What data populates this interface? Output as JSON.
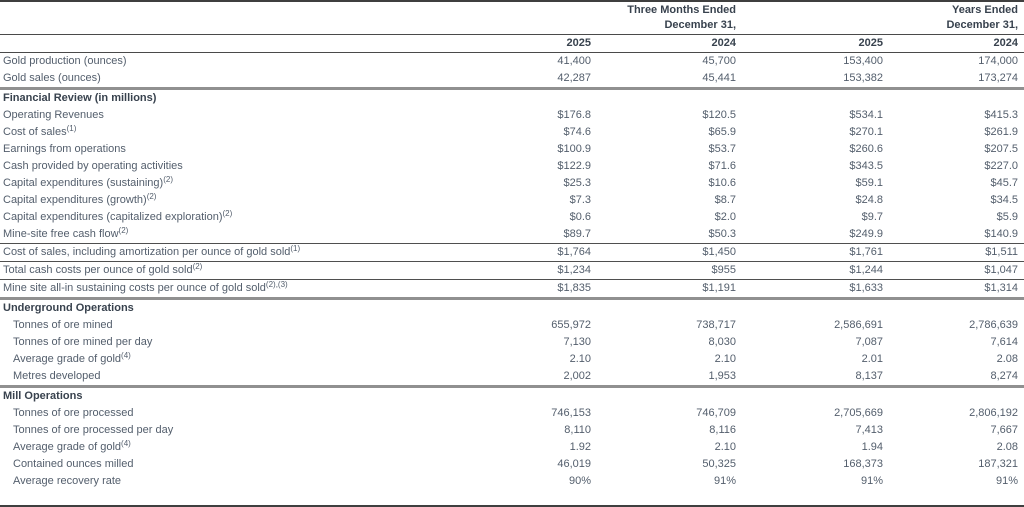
{
  "colors": {
    "text_regular": "#535e6c",
    "text_bold": "#38424e",
    "rule_dark": "#3f3f3f",
    "rule_thin": "#4f4f4f",
    "rule_thick_gray": "#909090"
  },
  "table": {
    "header": {
      "period1_line1": "Three Months Ended",
      "period1_line2": "December 31,",
      "period2_line1": "Years Ended",
      "period2_line2": "December 31,",
      "year_columns": [
        "2025",
        "2024",
        "2025",
        "2024"
      ]
    },
    "rows": [
      {
        "type": "data",
        "label": "Gold production (ounces)",
        "sup": "",
        "indent": false,
        "border_top": "none",
        "values": [
          "41,400",
          "45,700",
          "153,400",
          "174,000"
        ]
      },
      {
        "type": "data",
        "label": "Gold sales (ounces)",
        "sup": "",
        "indent": false,
        "border_top": "none",
        "values": [
          "42,287",
          "45,441",
          "153,382",
          "173,274"
        ]
      },
      {
        "type": "section",
        "label": "Financial Review (in millions)",
        "sup": "",
        "indent": false,
        "border_top": "thick",
        "values": []
      },
      {
        "type": "data",
        "label": "Operating Revenues",
        "sup": "",
        "indent": false,
        "border_top": "none",
        "values": [
          "$176.8",
          "$120.5",
          "$534.1",
          "$415.3"
        ]
      },
      {
        "type": "data",
        "label": "Cost of sales",
        "sup": "(1)",
        "indent": false,
        "border_top": "none",
        "values": [
          "$74.6",
          "$65.9",
          "$270.1",
          "$261.9"
        ]
      },
      {
        "type": "data",
        "label": "Earnings from operations",
        "sup": "",
        "indent": false,
        "border_top": "none",
        "values": [
          "$100.9",
          "$53.7",
          "$260.6",
          "$207.5"
        ]
      },
      {
        "type": "data",
        "label": "Cash provided by operating activities",
        "sup": "",
        "indent": false,
        "border_top": "none",
        "values": [
          "$122.9",
          "$71.6",
          "$343.5",
          "$227.0"
        ]
      },
      {
        "type": "data",
        "label": "Capital expenditures (sustaining)",
        "sup": "(2)",
        "indent": false,
        "border_top": "none",
        "values": [
          "$25.3",
          "$10.6",
          "$59.1",
          "$45.7"
        ]
      },
      {
        "type": "data",
        "label": "Capital expenditures (growth)",
        "sup": "(2)",
        "indent": false,
        "border_top": "none",
        "values": [
          "$7.3",
          "$8.7",
          "$24.8",
          "$34.5"
        ]
      },
      {
        "type": "data",
        "label": "Capital expenditures (capitalized exploration)",
        "sup": "(2)",
        "indent": false,
        "border_top": "none",
        "values": [
          "$0.6",
          "$2.0",
          "$9.7",
          "$5.9"
        ]
      },
      {
        "type": "data",
        "label": "Mine-site free cash flow",
        "sup": "(2)",
        "indent": false,
        "border_top": "none",
        "values": [
          "$89.7",
          "$50.3",
          "$249.9",
          "$140.9"
        ]
      },
      {
        "type": "data",
        "label": "Cost of sales, including amortization per ounce of gold sold",
        "sup": "(1)",
        "indent": false,
        "border_top": "thin",
        "values": [
          "$1,764",
          "$1,450",
          "$1,761",
          "$1,511"
        ]
      },
      {
        "type": "data",
        "label": "Total cash costs per ounce of gold sold",
        "sup": "(2)",
        "indent": false,
        "border_top": "thin",
        "values": [
          "$1,234",
          "$955",
          "$1,244",
          "$1,047"
        ]
      },
      {
        "type": "data",
        "label": "Mine site all-in sustaining costs per ounce of gold sold",
        "sup": "(2),(3)",
        "indent": false,
        "border_top": "thin",
        "values": [
          "$1,835",
          "$1,191",
          "$1,633",
          "$1,314"
        ]
      },
      {
        "type": "section",
        "label": "Underground Operations",
        "sup": "",
        "indent": false,
        "border_top": "thick",
        "values": []
      },
      {
        "type": "data",
        "label": "Tonnes of ore mined",
        "sup": "",
        "indent": true,
        "border_top": "none",
        "values": [
          "655,972",
          "738,717",
          "2,586,691",
          "2,786,639"
        ]
      },
      {
        "type": "data",
        "label": "Tonnes of ore mined per day",
        "sup": "",
        "indent": true,
        "border_top": "none",
        "values": [
          "7,130",
          "8,030",
          "7,087",
          "7,614"
        ]
      },
      {
        "type": "data",
        "label": "Average grade of gold",
        "sup": "(4)",
        "indent": true,
        "border_top": "none",
        "values": [
          "2.10",
          "2.10",
          "2.01",
          "2.08"
        ]
      },
      {
        "type": "data",
        "label": "Metres developed",
        "sup": "",
        "indent": true,
        "border_top": "none",
        "values": [
          "2,002",
          "1,953",
          "8,137",
          "8,274"
        ]
      },
      {
        "type": "section",
        "label": "Mill Operations",
        "sup": "",
        "indent": false,
        "border_top": "thick",
        "values": []
      },
      {
        "type": "data",
        "label": "Tonnes of ore processed",
        "sup": "",
        "indent": true,
        "border_top": "none",
        "values": [
          "746,153",
          "746,709",
          "2,705,669",
          "2,806,192"
        ]
      },
      {
        "type": "data",
        "label": "Tonnes of ore processed per day",
        "sup": "",
        "indent": true,
        "border_top": "none",
        "values": [
          "8,110",
          "8,116",
          "7,413",
          "7,667"
        ]
      },
      {
        "type": "data",
        "label": "Average grade of gold",
        "sup": "(4)",
        "indent": true,
        "border_top": "none",
        "values": [
          "1.92",
          "2.10",
          "1.94",
          "2.08"
        ]
      },
      {
        "type": "data",
        "label": "Contained ounces milled",
        "sup": "",
        "indent": true,
        "border_top": "none",
        "values": [
          "46,019",
          "50,325",
          "168,373",
          "187,321"
        ]
      },
      {
        "type": "data",
        "label": "Average recovery rate",
        "sup": "",
        "indent": true,
        "border_top": "none",
        "values": [
          "90%",
          "91%",
          "91%",
          "91%"
        ]
      }
    ]
  }
}
